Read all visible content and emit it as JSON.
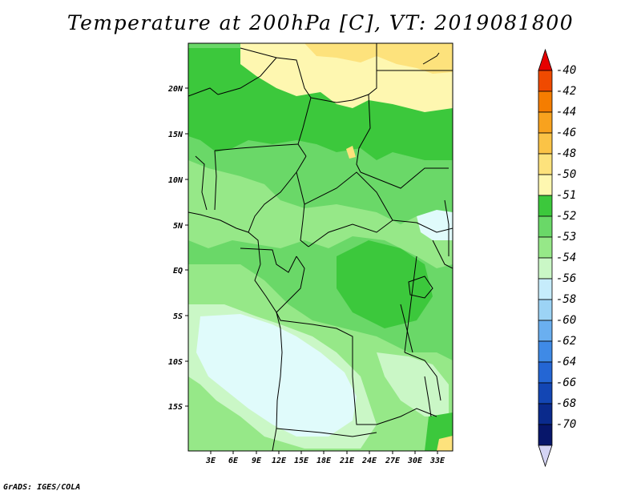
{
  "title": "Temperature at 200hPa [C], VT: 2019081800",
  "credit": "GrADS: IGES/COLA",
  "map": {
    "lat_labels": [
      "20N",
      "15N",
      "10N",
      "5N",
      "EQ",
      "5S",
      "10S",
      "15S"
    ],
    "lon_labels": [
      "3E",
      "6E",
      "9E",
      "12E",
      "15E",
      "18E",
      "21E",
      "24E",
      "27E",
      "30E",
      "33E"
    ]
  },
  "colorbar": {
    "labels": [
      "-40",
      "-42",
      "-44",
      "-46",
      "-48",
      "-50",
      "-51",
      "-52",
      "-53",
      "-54",
      "-56",
      "-58",
      "-60",
      "-62",
      "-64",
      "-66",
      "-68",
      "-70"
    ],
    "colors": [
      "#e60000",
      "#f04a00",
      "#f57d00",
      "#f8a21e",
      "#fbc346",
      "#fde27c",
      "#fef7b0",
      "#3cc83c",
      "#6ad868",
      "#96e888",
      "#caf7c6",
      "#c6ecfb",
      "#9cd3f5",
      "#6aaff0",
      "#3f8ae6",
      "#2466d4",
      "#1346b4",
      "#0a2a8c",
      "#07166a",
      "#d4d4f4"
    ]
  },
  "colors": {
    "warm_pale": "#fef7b0",
    "warm_yellow": "#fde27c",
    "green_dark": "#3cc83c",
    "green_mid": "#6ad868",
    "green_light": "#96e888",
    "green_pale": "#caf7c6",
    "blue_pale": "#e0fbfb"
  }
}
